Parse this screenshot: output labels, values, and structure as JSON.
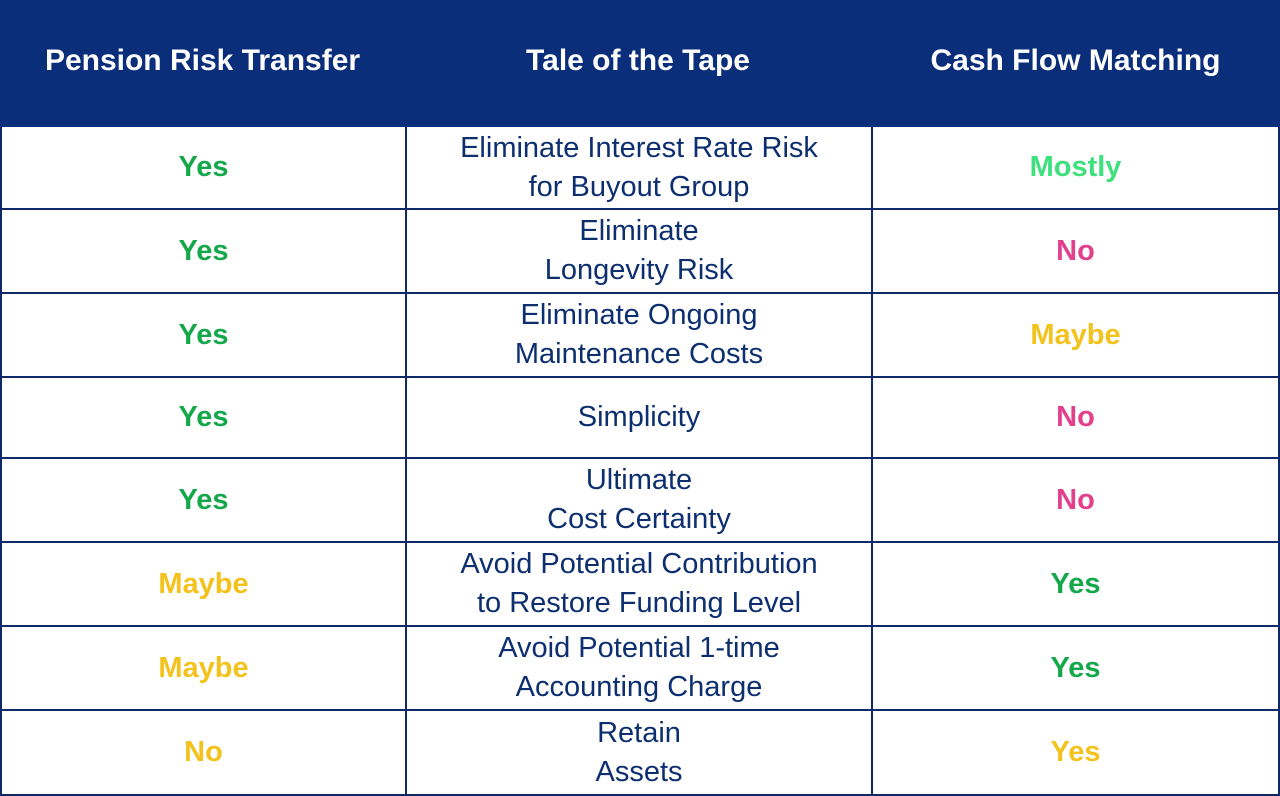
{
  "header": {
    "left": "Pension Risk Transfer",
    "middle": "Tale of the Tape",
    "right": "Cash Flow Matching"
  },
  "colors": {
    "header_bg": "#0b2e7a",
    "yes_green": "#15a84a",
    "mostly_green": "#3ee07d",
    "maybe_yellow": "#f4c21c",
    "no_pink": "#e23f8c",
    "no_yellow": "#f4c21c",
    "yes_yellow": "#f4c21c",
    "text_navy": "#0d2f70"
  },
  "rows": [
    {
      "left": "Yes",
      "middle": "Eliminate Interest Rate Risk\nfor Buyout Group",
      "right": "Mostly"
    },
    {
      "left": "Yes",
      "middle": "Eliminate\nLongevity Risk",
      "right": "No"
    },
    {
      "left": "Yes",
      "middle": "Eliminate Ongoing\nMaintenance Costs",
      "right": "Maybe"
    },
    {
      "left": "Yes",
      "middle": "Simplicity",
      "right": "No"
    },
    {
      "left": "Yes",
      "middle": "Ultimate\nCost Certainty",
      "right": "No"
    },
    {
      "left": "Maybe",
      "middle": "Avoid Potential Contribution\nto Restore Funding Level",
      "right": "Yes"
    },
    {
      "left": "Maybe",
      "middle": "Avoid Potential 1-time\nAccounting Charge",
      "right": "Yes"
    },
    {
      "left": "No",
      "middle": "Retain\nAssets",
      "right": "Yes"
    }
  ]
}
